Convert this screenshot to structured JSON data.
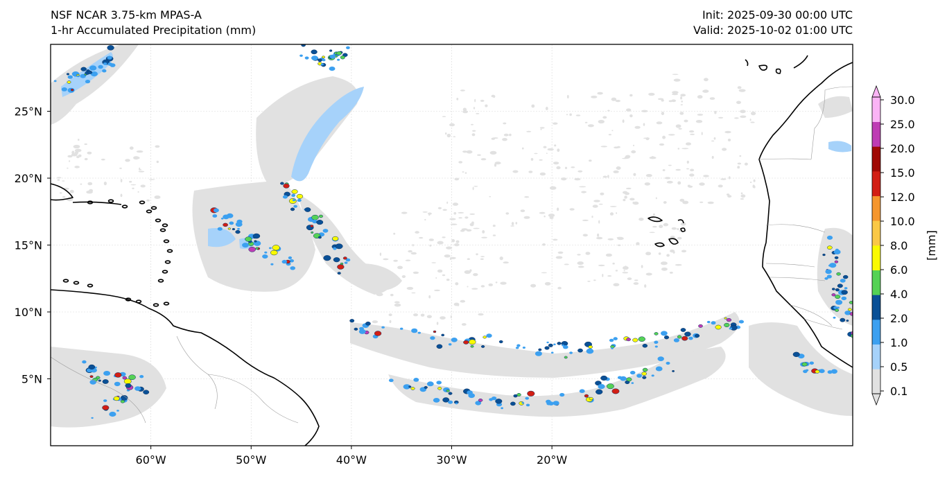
{
  "header": {
    "model": "NSF NCAR 3.75-km MPAS-A",
    "field": "1-hr Accumulated Precipitation (mm)",
    "init": "Init: 2025-09-30 00:00 UTC",
    "valid": "Valid: 2025-10-02 01:00 UTC"
  },
  "map": {
    "lon_range": [
      -70,
      10
    ],
    "lat_range": [
      0,
      30
    ],
    "lon_ticks": [
      {
        "value": -60,
        "label": "60°W"
      },
      {
        "value": -50,
        "label": "50°W"
      },
      {
        "value": -40,
        "label": "40°W"
      },
      {
        "value": -30,
        "label": "30°W"
      },
      {
        "value": -20,
        "label": "20°W"
      }
    ],
    "lat_ticks": [
      {
        "value": 5,
        "label": "5°N"
      },
      {
        "value": 10,
        "label": "10°N"
      },
      {
        "value": 15,
        "label": "15°N"
      },
      {
        "value": 20,
        "label": "20°N"
      },
      {
        "value": 25,
        "label": "25°N"
      }
    ],
    "gridlines": true
  },
  "colorbar": {
    "label": "[mm]",
    "levels": [
      "0.1",
      "0.5",
      "1.0",
      "2.0",
      "4.0",
      "6.0",
      "8.0",
      "10.0",
      "12.0",
      "15.0",
      "20.0",
      "25.0",
      "30.0"
    ],
    "colors": [
      "#e1e1e1",
      "#a6d2fa",
      "#3ca0f0",
      "#0a5096",
      "#55d255",
      "#fafa00",
      "#fac846",
      "#f5962d",
      "#d21e14",
      "#a00a05",
      "#be3cb4",
      "#fab4f5"
    ]
  }
}
